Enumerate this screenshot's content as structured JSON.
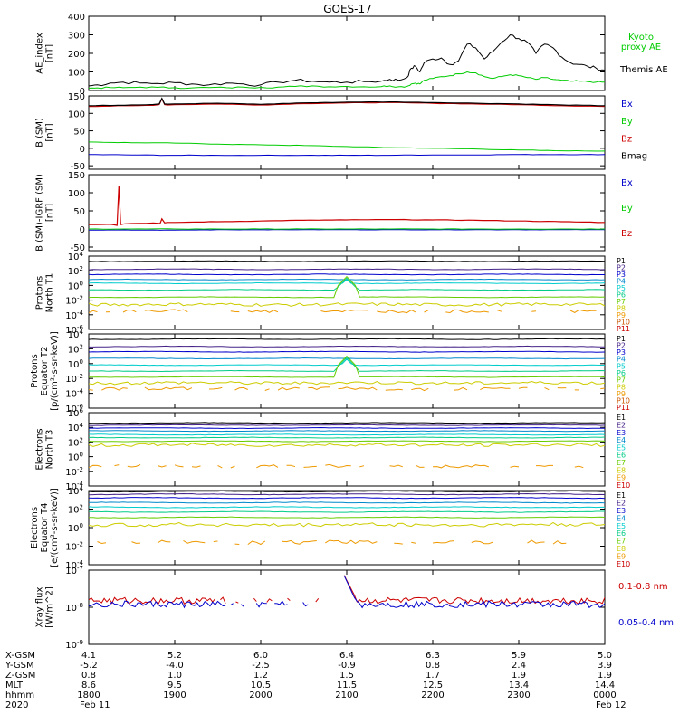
{
  "title": "GOES-17",
  "chart_data": [
    {
      "type": "line",
      "panel": "ae",
      "ylabel": [
        "AE_index",
        "[nT]"
      ],
      "ylim": [
        0,
        400
      ],
      "yticks": [
        "0",
        "100",
        "200",
        "300",
        "400"
      ],
      "x_hours": [
        18,
        18.1,
        18.25,
        18.4,
        18.6,
        18.8,
        19,
        19.2,
        19.4,
        19.6,
        19.8,
        20,
        20.2,
        20.4,
        20.6,
        20.8,
        21,
        21.2,
        21.4,
        21.5,
        21.6,
        21.7,
        21.75,
        21.8,
        21.85,
        21.9,
        22,
        22.1,
        22.2,
        22.3,
        22.4,
        22.5,
        22.6,
        22.7,
        22.8,
        22.9,
        23,
        23.1,
        23.2,
        23.3,
        23.4,
        23.5,
        23.6,
        23.7,
        23.8,
        23.9,
        24
      ],
      "series": [
        {
          "name": "Themis AE",
          "color": "#000000",
          "values": [
            25,
            30,
            40,
            45,
            40,
            38,
            42,
            35,
            30,
            40,
            35,
            30,
            45,
            55,
            50,
            45,
            45,
            48,
            50,
            60,
            55,
            70,
            120,
            130,
            100,
            150,
            170,
            175,
            140,
            160,
            250,
            230,
            170,
            210,
            260,
            300,
            280,
            260,
            200,
            250,
            230,
            180,
            150,
            140,
            130,
            120,
            110
          ]
        },
        {
          "name": "Kyoto\nproxy AE",
          "color": "#00cc00",
          "values": [
            12,
            14,
            16,
            15,
            18,
            17,
            15,
            14,
            16,
            15,
            18,
            17,
            18,
            22,
            25,
            20,
            22,
            20,
            21,
            25,
            20,
            22,
            35,
            40,
            35,
            55,
            65,
            75,
            80,
            90,
            100,
            95,
            75,
            65,
            75,
            85,
            80,
            70,
            60,
            70,
            60,
            55,
            50,
            50,
            48,
            45,
            45
          ]
        }
      ],
      "legend": [
        "Kyoto\nproxy AE",
        "Themis AE"
      ]
    },
    {
      "type": "line",
      "panel": "b_sm",
      "ylabel": [
        "B (SM)",
        "[nT]"
      ],
      "ylim": [
        -60,
        150
      ],
      "yticks": [
        "-50",
        "0",
        "50",
        "100",
        "150"
      ],
      "x_hours": [
        18,
        18.5,
        19,
        19.5,
        20,
        20.5,
        21,
        21.5,
        22,
        22.5,
        23,
        23.5,
        24
      ],
      "series": [
        {
          "name": "Bx",
          "color": "#0000cc",
          "values": [
            -18,
            -19,
            -20,
            -20,
            -20,
            -20,
            -20,
            -20,
            -19,
            -19,
            -18,
            -18,
            -18
          ]
        },
        {
          "name": "By",
          "color": "#00cc00",
          "values": [
            18,
            16,
            15,
            12,
            10,
            8,
            5,
            2,
            0,
            -2,
            -5,
            -7,
            -8
          ]
        },
        {
          "name": "Bz",
          "color": "#cc0000",
          "values": [
            120,
            122,
            125,
            127,
            124,
            128,
            130,
            131,
            129,
            127,
            125,
            122,
            120
          ]
        },
        {
          "name": "Bmag",
          "color": "#000000",
          "values": [
            122,
            124,
            127,
            129,
            126,
            130,
            132,
            133,
            131,
            129,
            127,
            124,
            122
          ]
        }
      ],
      "spike": {
        "x": 18.85,
        "values": {
          "Bz": 142,
          "Bmag": 143
        }
      },
      "legend": [
        "Bx",
        "By",
        "Bz",
        "Bmag"
      ]
    },
    {
      "type": "line",
      "panel": "b_sm_igrf",
      "ylabel": [
        "B (SM)-IGRF (SM)",
        "[nT]"
      ],
      "ylim": [
        -60,
        150
      ],
      "yticks": [
        "-50",
        "0",
        "50",
        "100",
        "150"
      ],
      "x_hours": [
        18,
        18.5,
        19,
        19.5,
        20,
        20.5,
        21,
        21.5,
        22,
        22.5,
        23,
        23.5,
        24
      ],
      "series": [
        {
          "name": "Bx",
          "color": "#0000cc",
          "values": [
            -3,
            -3,
            -3,
            -2,
            -2,
            -2,
            -2,
            -2,
            -2,
            -2,
            -2,
            -2,
            -2
          ]
        },
        {
          "name": "By",
          "color": "#00cc00",
          "values": [
            0,
            0,
            0,
            0,
            0,
            0,
            0,
            0,
            0,
            0,
            0,
            0,
            0
          ]
        },
        {
          "name": "Bz",
          "color": "#cc0000",
          "values": [
            12,
            15,
            18,
            20,
            22,
            24,
            25,
            26,
            25,
            24,
            22,
            20,
            18
          ]
        }
      ],
      "spike": {
        "x": 18.35,
        "value": 120
      },
      "legend": [
        "Bx",
        "By",
        "Bz"
      ]
    },
    {
      "type": "line",
      "panel": "protons_t1",
      "log": true,
      "ylabel": [
        "Protons",
        "North T1"
      ],
      "ylim_exp": [
        -6,
        4
      ],
      "yticks": [
        "10^-6",
        "10^-4",
        "10^-2",
        "10^0",
        "10^2",
        "10^4"
      ],
      "channels": [
        "P1",
        "P2",
        "P3",
        "P4",
        "P5",
        "P6",
        "P7",
        "P8",
        "P9",
        "P10",
        "P11"
      ],
      "levels_exp": [
        3.3,
        2.2,
        1.5,
        0.8,
        0.3,
        -0.6,
        -1.6,
        -2.6,
        -3.5,
        null,
        null
      ],
      "spike": {
        "x": 21.0,
        "exp": 0.8
      },
      "legend": [
        "P1",
        "P2",
        "P3",
        "P4",
        "P5",
        "P6",
        "P7",
        "P8",
        "P9",
        "P10",
        "P11"
      ]
    },
    {
      "type": "line",
      "panel": "protons_t2",
      "log": true,
      "ylabel": [
        "Protons",
        "Equator T2",
        "[p/(cm²-s-sr-keV)]"
      ],
      "ylim_exp": [
        -6,
        4
      ],
      "yticks": [
        "10^-6",
        "10^-4",
        "10^-2",
        "10^0",
        "10^2",
        "10^4"
      ],
      "channels": [
        "P1",
        "P2",
        "P3",
        "P4",
        "P5",
        "P6",
        "P7",
        "P8",
        "P9",
        "P10",
        "P11"
      ],
      "levels_exp": [
        3.3,
        2.3,
        1.6,
        0.7,
        -0.2,
        -1.0,
        -1.8,
        -2.6,
        -3.4,
        null,
        null
      ],
      "spike": {
        "x": 21.0,
        "exp": 0.6
      },
      "legend": [
        "P1",
        "P2",
        "P3",
        "P4",
        "P5",
        "P6",
        "P7",
        "P8",
        "P9",
        "P10",
        "P11"
      ]
    },
    {
      "type": "line",
      "panel": "electrons_t3",
      "log": true,
      "ylabel": [
        "Electrons",
        "North T3"
      ],
      "ylim_exp": [
        -4,
        6
      ],
      "yticks": [
        "10^-4",
        "10^-2",
        "10^0",
        "10^2",
        "10^4",
        "10^6"
      ],
      "channels": [
        "E1",
        "E2",
        "E3",
        "E4",
        "E5",
        "E6",
        "E7",
        "E8",
        "E9",
        "E10"
      ],
      "levels_exp": [
        4.6,
        4.3,
        3.9,
        3.5,
        3.0,
        2.6,
        2.1,
        1.6,
        -1.3,
        null
      ],
      "legend": [
        "E1",
        "E2",
        "E3",
        "E4",
        "E5",
        "E6",
        "E7",
        "E8",
        "E9",
        "E10"
      ]
    },
    {
      "type": "line",
      "panel": "electrons_t4",
      "log": true,
      "ylabel": [
        "Electrons",
        "Equator T4",
        "[e/(cm²-s-sr-keV)]"
      ],
      "ylim_exp": [
        -4,
        4
      ],
      "yticks": [
        "10^-4",
        "10^-2",
        "10^0",
        "10^2",
        "10^4"
      ],
      "channels": [
        "E1",
        "E2",
        "E3",
        "E4",
        "E5",
        "E6",
        "E7",
        "E8",
        "E9",
        "E10"
      ],
      "levels_exp": [
        3.9,
        3.6,
        3.2,
        2.7,
        2.2,
        1.7,
        1.1,
        0.3,
        -1.6,
        null
      ],
      "legend": [
        "E1",
        "E2",
        "E3",
        "E4",
        "E5",
        "E6",
        "E7",
        "E8",
        "E9",
        "E10"
      ]
    },
    {
      "type": "line",
      "panel": "xray",
      "log": true,
      "ylabel": [
        "Xray flux",
        "[W/m^2]"
      ],
      "ylim_exp": [
        -9,
        -7
      ],
      "yticks": [
        "10^-9",
        "10^-8",
        "10^-7"
      ],
      "series": [
        {
          "name": "0.1-0.8 nm",
          "color": "#cc0000",
          "level_exp": -7.82
        },
        {
          "name": "0.05-0.4 nm",
          "color": "#0000cc",
          "level_exp": -7.92
        }
      ],
      "spike": {
        "x": 21.0,
        "exp": -7.05
      },
      "legend": [
        "0.1-0.8 nm",
        "0.05-0.4 nm"
      ]
    }
  ],
  "channel_colors": {
    "P": [
      "#000000",
      "#442288",
      "#0000cc",
      "#0088cc",
      "#00cccc",
      "#00cc88",
      "#66cc00",
      "#cccc00",
      "#ee9900",
      "#cc5500",
      "#cc0000"
    ],
    "E": [
      "#000000",
      "#442288",
      "#0000cc",
      "#0088cc",
      "#00cccc",
      "#00cc88",
      "#66cc00",
      "#cccc00",
      "#ee9900",
      "#cc0000"
    ]
  },
  "xaxis": {
    "ticks_hours": [
      18,
      19,
      20,
      21,
      22,
      23,
      24
    ],
    "rows": [
      {
        "label": "X-GSM",
        "values": [
          "4.1",
          "5.2",
          "6.0",
          "6.4",
          "6.3",
          "5.9",
          "5.0"
        ]
      },
      {
        "label": "Y-GSM",
        "values": [
          "-5.2",
          "-4.0",
          "-2.5",
          "-0.9",
          "0.8",
          "2.4",
          "3.9"
        ]
      },
      {
        "label": "Z-GSM",
        "values": [
          "0.8",
          "1.0",
          "1.2",
          "1.5",
          "1.7",
          "1.9",
          "1.9"
        ]
      },
      {
        "label": "MLT",
        "values": [
          "8.6",
          "9.5",
          "10.5",
          "11.5",
          "12.5",
          "13.4",
          "14.4"
        ]
      },
      {
        "label": "hhmm",
        "values": [
          "1800",
          "1900",
          "2000",
          "2100",
          "2200",
          "2300",
          "0000"
        ]
      },
      {
        "label": "2020",
        "values": [
          "Feb 11",
          "",
          "",
          "",
          "",
          "",
          "Feb 12"
        ]
      }
    ]
  }
}
